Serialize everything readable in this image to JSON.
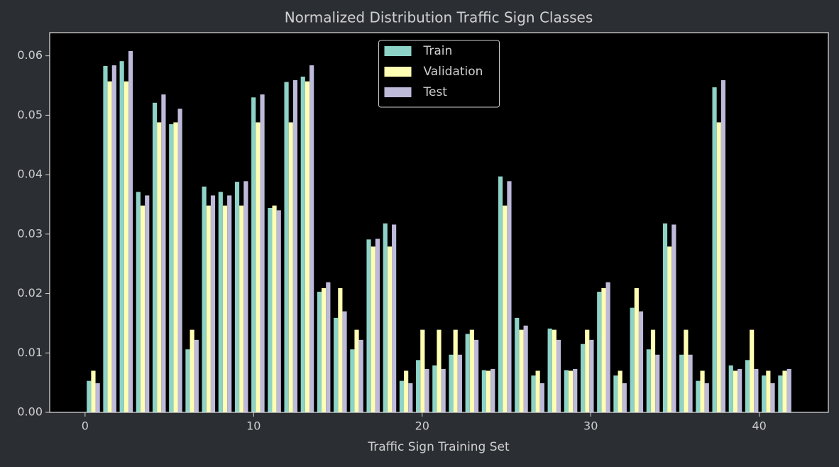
{
  "chart_data": {
    "type": "bar",
    "title": "Normalized Distribution Traffic Sign Classes",
    "xlabel": "Traffic Sign Training Set",
    "x": [
      0,
      1,
      2,
      3,
      4,
      5,
      6,
      7,
      8,
      9,
      10,
      11,
      12,
      13,
      14,
      15,
      16,
      17,
      18,
      19,
      20,
      21,
      22,
      23,
      24,
      25,
      26,
      27,
      28,
      29,
      30,
      31,
      32,
      33,
      34,
      35,
      36,
      37,
      38,
      39,
      40,
      41,
      42
    ],
    "series": [
      {
        "name": "Train",
        "color": "#8dd3c7",
        "values": [
          0.0053,
          0.0583,
          0.0591,
          0.0371,
          0.0521,
          0.0485,
          0.0106,
          0.038,
          0.0371,
          0.0388,
          0.053,
          0.0344,
          0.0556,
          0.0565,
          0.0203,
          0.0159,
          0.0106,
          0.0291,
          0.0318,
          0.0053,
          0.0088,
          0.0079,
          0.0097,
          0.0132,
          0.0071,
          0.0397,
          0.0159,
          0.0062,
          0.0141,
          0.0071,
          0.0115,
          0.0203,
          0.0062,
          0.0176,
          0.0106,
          0.0318,
          0.0097,
          0.0053,
          0.0547,
          0.0079,
          0.0088,
          0.0062,
          0.0062
        ]
      },
      {
        "name": "Validation",
        "color": "#ffffb3",
        "values": [
          0.007,
          0.0557,
          0.0557,
          0.0348,
          0.0488,
          0.0488,
          0.0139,
          0.0348,
          0.0348,
          0.0348,
          0.0488,
          0.0348,
          0.0488,
          0.0557,
          0.0209,
          0.0209,
          0.0139,
          0.0279,
          0.0279,
          0.007,
          0.0139,
          0.0139,
          0.0139,
          0.0139,
          0.007,
          0.0348,
          0.0139,
          0.007,
          0.0139,
          0.007,
          0.0139,
          0.0209,
          0.007,
          0.0209,
          0.0139,
          0.0279,
          0.0139,
          0.007,
          0.0488,
          0.007,
          0.0139,
          0.007,
          0.007
        ]
      },
      {
        "name": "Test",
        "color": "#bebada",
        "values": [
          0.0049,
          0.0584,
          0.0608,
          0.0365,
          0.0535,
          0.0511,
          0.0122,
          0.0365,
          0.0365,
          0.0389,
          0.0535,
          0.034,
          0.0559,
          0.0584,
          0.0219,
          0.017,
          0.0122,
          0.0292,
          0.0316,
          0.0049,
          0.0073,
          0.0073,
          0.0097,
          0.0122,
          0.0073,
          0.0389,
          0.0146,
          0.0049,
          0.0122,
          0.0073,
          0.0122,
          0.0219,
          0.0049,
          0.017,
          0.0097,
          0.0316,
          0.0097,
          0.0049,
          0.0559,
          0.0073,
          0.0073,
          0.0049,
          0.0073
        ]
      }
    ],
    "xlim": [
      -2.1,
      44.1
    ],
    "xticks": [
      0,
      10,
      20,
      30,
      40
    ],
    "ylim": [
      0,
      0.0639
    ],
    "yticks": [
      {
        "value": 0,
        "label": "0.00"
      },
      0.01,
      0.02,
      0.03,
      0.04,
      0.05,
      0.06
    ],
    "legend": "upper center",
    "grid": false
  }
}
